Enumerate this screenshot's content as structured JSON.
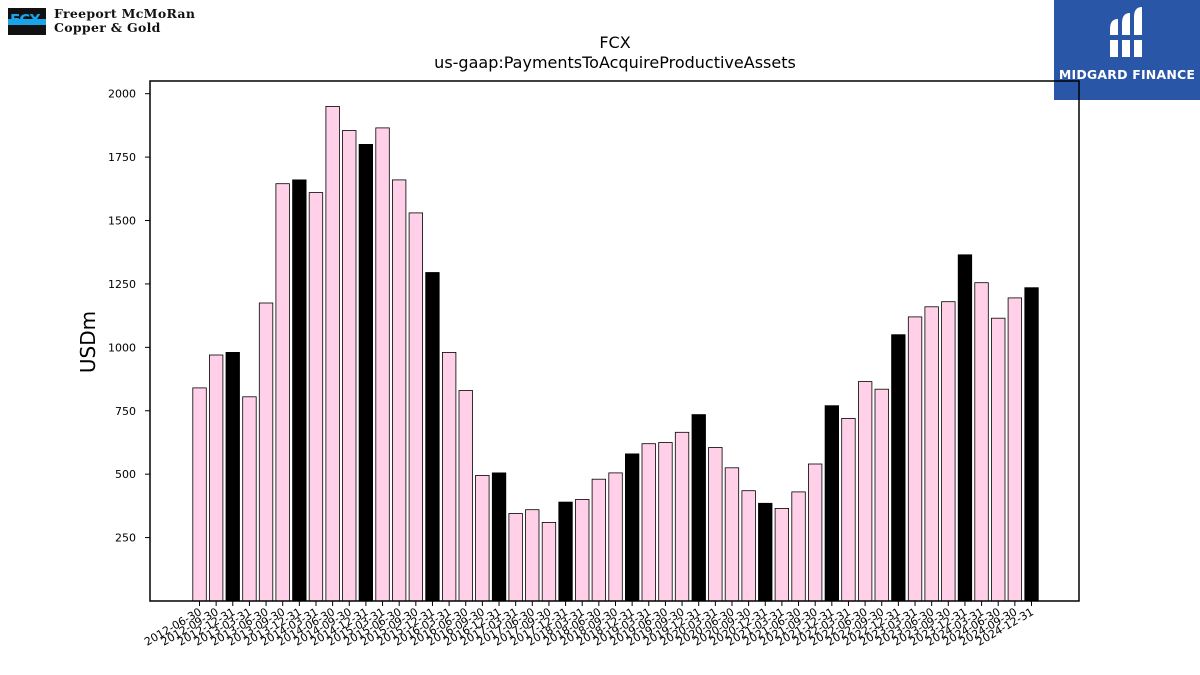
{
  "logo_left": {
    "line1": "Freeport McMoRan",
    "line2": "Copper & Gold",
    "mark": "FCX"
  },
  "logo_right": {
    "brand": "MIDGARD FINANCE"
  },
  "colors": {
    "pink": "#ffd0e8",
    "black": "#000000",
    "brand_blue": "#2a56a8",
    "fcx_blue": "#1aa3e8"
  },
  "chart_data": {
    "type": "bar",
    "title": "FCX",
    "subtitle": "us-gaap:PaymentsToAcquireProductiveAssets",
    "ylabel": "USDm",
    "xlabel": "",
    "ylim": [
      0,
      2050
    ],
    "yticks": [
      250,
      500,
      750,
      1000,
      1250,
      1500,
      1750,
      2000
    ],
    "grid": false,
    "categories": [
      "2012-06-30",
      "2012-09-30",
      "2012-12-31",
      "2013-03-31",
      "2013-06-30",
      "2013-09-30",
      "2013-12-31",
      "2014-03-31",
      "2014-06-30",
      "2014-09-30",
      "2014-12-31",
      "2015-03-31",
      "2015-06-30",
      "2015-09-30",
      "2015-12-31",
      "2016-03-31",
      "2016-06-30",
      "2016-09-30",
      "2016-12-31",
      "2017-03-31",
      "2017-06-30",
      "2017-09-30",
      "2017-12-31",
      "2018-03-31",
      "2018-06-30",
      "2018-09-30",
      "2018-12-31",
      "2019-03-31",
      "2019-06-30",
      "2019-09-30",
      "2019-12-31",
      "2020-03-31",
      "2020-06-30",
      "2020-09-30",
      "2020-12-31",
      "2021-03-31",
      "2021-06-30",
      "2021-09-30",
      "2021-12-31",
      "2022-03-31",
      "2022-06-30",
      "2022-09-30",
      "2022-12-31",
      "2023-03-31",
      "2023-06-30",
      "2023-09-30",
      "2023-12-31",
      "2024-03-31",
      "2024-06-30",
      "2024-09-30",
      "2024-12-31"
    ],
    "values": [
      840,
      970,
      980,
      805,
      1175,
      1645,
      1660,
      1610,
      1950,
      1855,
      1800,
      1865,
      1660,
      1530,
      1295,
      980,
      830,
      495,
      505,
      345,
      360,
      310,
      390,
      400,
      480,
      505,
      580,
      620,
      625,
      665,
      735,
      605,
      525,
      435,
      385,
      365,
      430,
      540,
      770,
      720,
      865,
      835,
      1050,
      1120,
      1160,
      1180,
      1365,
      1255,
      1115,
      1195,
      1235
    ],
    "highlight_q4": true
  }
}
